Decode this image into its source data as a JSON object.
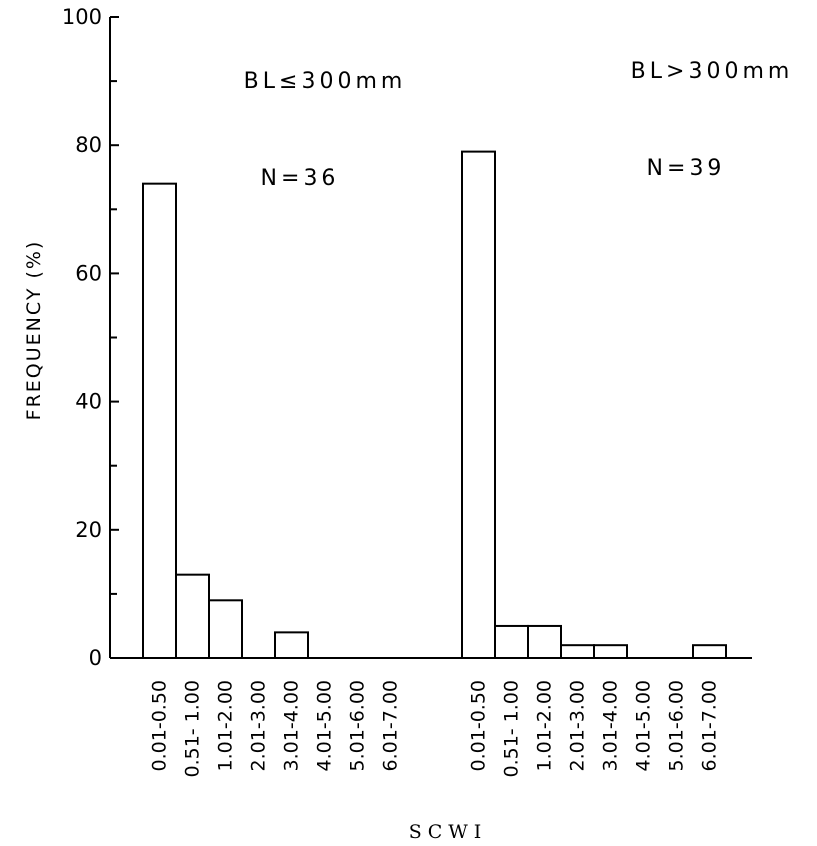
{
  "chart_data": {
    "type": "bar",
    "xlabel": "SCWI",
    "ylabel": "FREQUENCY (%)",
    "ylim": [
      0,
      100
    ],
    "yticks": [
      0,
      20,
      40,
      60,
      80,
      100
    ],
    "y_tick_labels": [
      "0",
      "20",
      "40",
      "60",
      "80",
      "100"
    ],
    "grid": false,
    "groups": [
      {
        "annotation": "BL≤300mm",
        "n_label": "N=36",
        "categories": [
          "0.01-0.50",
          "0.51- 1.00",
          "1.01-2.00",
          "2.01-3.00",
          "3.01-4.00",
          "4.01-5.00",
          "5.01-6.00",
          "6.01-7.00"
        ],
        "values": [
          74,
          13,
          9,
          0,
          4,
          0,
          0,
          0
        ]
      },
      {
        "annotation": "BL>300mm",
        "n_label": "N=39",
        "categories": [
          "0.01-0.50",
          "0.51- 1.00",
          "1.01-2.00",
          "2.01-3.00",
          "3.01-4.00",
          "4.01-5.00",
          "5.01-6.00",
          "6.01-7.00"
        ],
        "values": [
          79,
          5,
          5,
          2,
          2,
          0,
          0,
          2
        ]
      }
    ]
  }
}
